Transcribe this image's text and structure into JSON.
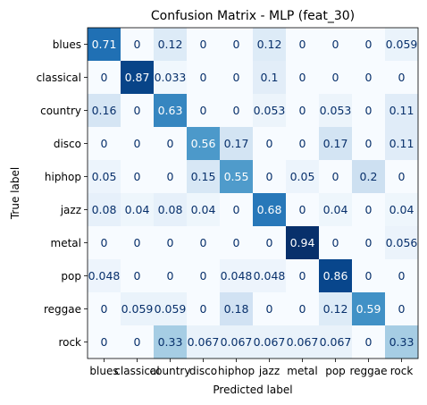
{
  "chart_data": {
    "type": "heatmap",
    "title": "Confusion Matrix - MLP (feat_30)",
    "xlabel": "Predicted label",
    "ylabel": "True label",
    "x_categories": [
      "blues",
      "classical",
      "country",
      "disco",
      "hiphop",
      "jazz",
      "metal",
      "pop",
      "reggae",
      "rock"
    ],
    "y_categories": [
      "blues",
      "classical",
      "country",
      "disco",
      "hiphop",
      "jazz",
      "metal",
      "pop",
      "reggae",
      "rock"
    ],
    "colormap": "Blues",
    "color_range": [
      0,
      0.94
    ],
    "values": [
      [
        0.71,
        0,
        0.12,
        0,
        0,
        0.12,
        0,
        0,
        0,
        0.059
      ],
      [
        0,
        0.87,
        0.033,
        0,
        0,
        0.1,
        0,
        0,
        0,
        0
      ],
      [
        0.16,
        0,
        0.63,
        0,
        0,
        0.053,
        0,
        0.053,
        0,
        0.11
      ],
      [
        0,
        0,
        0,
        0.56,
        0.17,
        0,
        0,
        0.17,
        0,
        0.11
      ],
      [
        0.05,
        0,
        0,
        0.15,
        0.55,
        0,
        0.05,
        0,
        0.2,
        0
      ],
      [
        0.08,
        0.04,
        0.08,
        0.04,
        0,
        0.68,
        0,
        0.04,
        0,
        0.04
      ],
      [
        0,
        0,
        0,
        0,
        0,
        0,
        0.94,
        0,
        0,
        0.056
      ],
      [
        0.048,
        0,
        0,
        0,
        0.048,
        0.048,
        0,
        0.86,
        0,
        0
      ],
      [
        0,
        0.059,
        0.059,
        0,
        0.18,
        0,
        0,
        0.12,
        0.59,
        0
      ],
      [
        0,
        0,
        0.33,
        0.067,
        0.067,
        0.067,
        0.067,
        0.067,
        0,
        0.33
      ]
    ]
  }
}
